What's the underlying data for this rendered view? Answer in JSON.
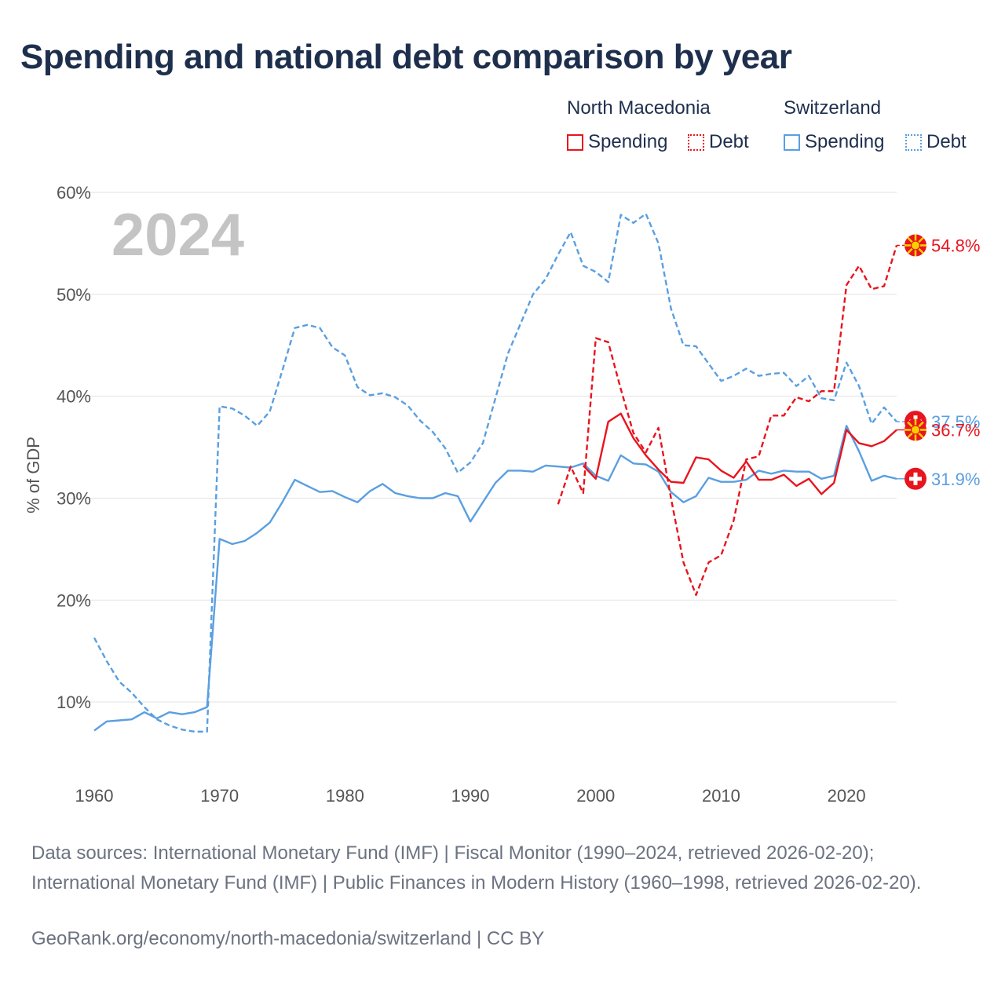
{
  "title": "Spending and national debt comparison by year",
  "legend": {
    "group1": "North Macedonia",
    "group2": "Switzerland",
    "spending": "Spending",
    "debt": "Debt"
  },
  "colors": {
    "north_macedonia": "#e8141e",
    "switzerland": "#5a9fe0"
  },
  "chart_data": {
    "type": "line",
    "title": "Spending and national debt comparison by year",
    "ylabel": "% of GDP",
    "xlabel": "",
    "year_label": "2024",
    "xlim": [
      1960,
      2024
    ],
    "ylim": [
      3,
      60
    ],
    "x_ticks": [
      1960,
      1970,
      1980,
      1990,
      2000,
      2010,
      2020
    ],
    "x_tick_labels": [
      "1960",
      "1970",
      "1980",
      "1990",
      "2000",
      "2010",
      "2020"
    ],
    "y_ticks": [
      10,
      20,
      30,
      40,
      50,
      60
    ],
    "y_tick_labels": [
      "10%",
      "20%",
      "30%",
      "40%",
      "50%",
      "60%"
    ],
    "grid": true,
    "series": [
      {
        "name": "Switzerland Debt",
        "country": "Switzerland",
        "kind": "Debt",
        "style": "dashed",
        "x": [
          1960,
          1961,
          1962,
          1963,
          1964,
          1965,
          1966,
          1967,
          1968,
          1969,
          1970,
          1971,
          1972,
          1973,
          1974,
          1975,
          1976,
          1977,
          1978,
          1979,
          1980,
          1981,
          1982,
          1983,
          1984,
          1985,
          1986,
          1987,
          1988,
          1989,
          1990,
          1991,
          1992,
          1993,
          1994,
          1995,
          1996,
          1997,
          1998,
          1999,
          2000,
          2001,
          2002,
          2003,
          2004,
          2005,
          2006,
          2007,
          2008,
          2009,
          2010,
          2011,
          2012,
          2013,
          2014,
          2015,
          2016,
          2017,
          2018,
          2019,
          2020,
          2021,
          2022,
          2023,
          2024
        ],
        "y": [
          16.3,
          14.0,
          12.0,
          10.9,
          9.5,
          8.3,
          7.7,
          7.3,
          7.1,
          7.1,
          39.0,
          38.8,
          38.1,
          37.1,
          38.5,
          42.5,
          46.7,
          47.0,
          46.7,
          44.8,
          44.0,
          40.9,
          40.1,
          40.3,
          39.9,
          39.1,
          37.6,
          36.5,
          34.9,
          32.5,
          33.5,
          35.4,
          39.8,
          44.2,
          47.1,
          50.0,
          51.5,
          53.9,
          56.1,
          52.8,
          52.2,
          51.2,
          57.8,
          57.0,
          57.9,
          55.0,
          48.6,
          45.0,
          44.9,
          43.2,
          41.5,
          42.0,
          42.7,
          42.0,
          42.2,
          42.3,
          41.0,
          42.0,
          39.8,
          39.6,
          43.3,
          41.0,
          37.3,
          38.9,
          37.5
        ]
      },
      {
        "name": "Switzerland Spending",
        "country": "Switzerland",
        "kind": "Spending",
        "style": "solid",
        "x": [
          1960,
          1961,
          1962,
          1963,
          1964,
          1965,
          1966,
          1967,
          1968,
          1969,
          1970,
          1971,
          1972,
          1973,
          1974,
          1975,
          1976,
          1977,
          1978,
          1979,
          1980,
          1981,
          1982,
          1983,
          1984,
          1985,
          1986,
          1987,
          1988,
          1989,
          1990,
          1991,
          1992,
          1993,
          1994,
          1995,
          1996,
          1997,
          1998,
          1999,
          2000,
          2001,
          2002,
          2003,
          2004,
          2005,
          2006,
          2007,
          2008,
          2009,
          2010,
          2011,
          2012,
          2013,
          2014,
          2015,
          2016,
          2017,
          2018,
          2019,
          2020,
          2021,
          2022,
          2023,
          2024
        ],
        "y": [
          7.2,
          8.1,
          8.2,
          8.3,
          9.0,
          8.4,
          9.0,
          8.8,
          9.0,
          9.5,
          26.0,
          25.5,
          25.8,
          26.6,
          27.6,
          29.6,
          31.8,
          31.2,
          30.6,
          30.7,
          30.1,
          29.6,
          30.7,
          31.4,
          30.5,
          30.2,
          30.0,
          30.0,
          30.5,
          30.2,
          27.7,
          29.6,
          31.5,
          32.7,
          32.7,
          32.6,
          33.2,
          33.1,
          33.0,
          33.4,
          32.2,
          31.7,
          34.2,
          33.4,
          33.3,
          32.6,
          30.6,
          29.6,
          30.2,
          32.0,
          31.6,
          31.6,
          31.8,
          32.7,
          32.4,
          32.7,
          32.6,
          32.6,
          31.9,
          32.2,
          37.1,
          34.6,
          31.7,
          32.2,
          31.9
        ]
      },
      {
        "name": "North Macedonia Debt",
        "country": "North Macedonia",
        "kind": "Debt",
        "style": "dashed",
        "x": [
          1997,
          1998,
          1999,
          2000,
          2001,
          2002,
          2003,
          2004,
          2005,
          2006,
          2007,
          2008,
          2009,
          2010,
          2011,
          2012,
          2013,
          2014,
          2015,
          2016,
          2017,
          2018,
          2019,
          2020,
          2021,
          2022,
          2023,
          2024
        ],
        "y": [
          29.4,
          33.1,
          30.5,
          45.7,
          45.3,
          40.7,
          36.4,
          34.5,
          36.9,
          30.0,
          23.7,
          20.5,
          23.7,
          24.4,
          27.8,
          33.8,
          34.1,
          38.1,
          38.1,
          39.9,
          39.5,
          40.5,
          40.5,
          50.9,
          52.8,
          50.5,
          50.8,
          54.8
        ]
      },
      {
        "name": "North Macedonia Spending",
        "country": "North Macedonia",
        "kind": "Spending",
        "style": "solid",
        "x": [
          1999,
          2000,
          2001,
          2002,
          2003,
          2004,
          2005,
          2006,
          2007,
          2008,
          2009,
          2010,
          2011,
          2012,
          2013,
          2014,
          2015,
          2016,
          2017,
          2018,
          2019,
          2020,
          2021,
          2022,
          2023,
          2024
        ],
        "y": [
          33.2,
          31.9,
          37.5,
          38.3,
          35.9,
          34.2,
          32.8,
          31.6,
          31.5,
          34.0,
          33.8,
          32.7,
          32.0,
          33.6,
          31.8,
          31.8,
          32.3,
          31.2,
          31.9,
          30.4,
          31.5,
          36.7,
          35.4,
          35.1,
          35.6,
          36.7
        ]
      }
    ],
    "end_labels": [
      {
        "series": "North Macedonia Debt",
        "value": 54.8,
        "text": "54.8%",
        "flag": "North Macedonia"
      },
      {
        "series": "Switzerland Debt",
        "value": 37.5,
        "text": "37.5%",
        "flag": "Switzerland"
      },
      {
        "series": "North Macedonia Spending",
        "value": 36.7,
        "text": "36.7%",
        "flag": "North Macedonia"
      },
      {
        "series": "Switzerland Spending",
        "value": 31.9,
        "text": "31.9%",
        "flag": "Switzerland"
      }
    ]
  },
  "footer": {
    "sources": "Data sources: International Monetary Fund (IMF) | Fiscal Monitor (1990–2024, retrieved 2026-02-20); International Monetary Fund (IMF) | Public Finances in Modern History (1960–1998, retrieved 2026-02-20).",
    "link": "GeoRank.org/economy/north-macedonia/switzerland | CC BY"
  }
}
